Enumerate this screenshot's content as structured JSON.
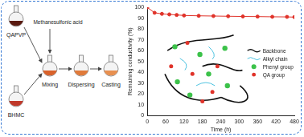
{
  "diagram": {
    "flasks": [
      {
        "label": "QAPVP",
        "color": "#5a1a10"
      },
      {
        "label": "BHMC",
        "color": "#c0392b"
      }
    ],
    "reagent": "Methanesulfonic acid",
    "steps": [
      "Mixing",
      "Dispersing",
      "Casting"
    ],
    "inset_legend": [
      {
        "label": "Backbone",
        "color": "#111111"
      },
      {
        "label": "Alkyl chain",
        "color": "#4fc3e0"
      },
      {
        "label": "Phenyl group",
        "color": "#3cc24a"
      },
      {
        "label": "QA group",
        "color": "#e0332a"
      }
    ]
  },
  "chart_data": {
    "type": "line",
    "x_label": "Time (h)",
    "y_label": "Remaining conductivity (%)",
    "x": [
      0,
      24,
      48,
      72,
      96,
      120,
      168,
      216,
      264,
      312,
      360,
      408,
      456,
      480
    ],
    "values": [
      100,
      95,
      94,
      93.5,
      93,
      92.5,
      92.2,
      92,
      91.8,
      91.6,
      91.5,
      91.3,
      91.2,
      91
    ],
    "color": "#e0332a",
    "marker": "circle",
    "xlim": [
      0,
      480
    ],
    "xticks": [
      0,
      60,
      120,
      180,
      240,
      300,
      360,
      420,
      480
    ],
    "ylim": [
      0,
      100
    ],
    "yticks": [
      0,
      10,
      20,
      30,
      40,
      50,
      60,
      70,
      80,
      90,
      100
    ],
    "grid": false
  }
}
